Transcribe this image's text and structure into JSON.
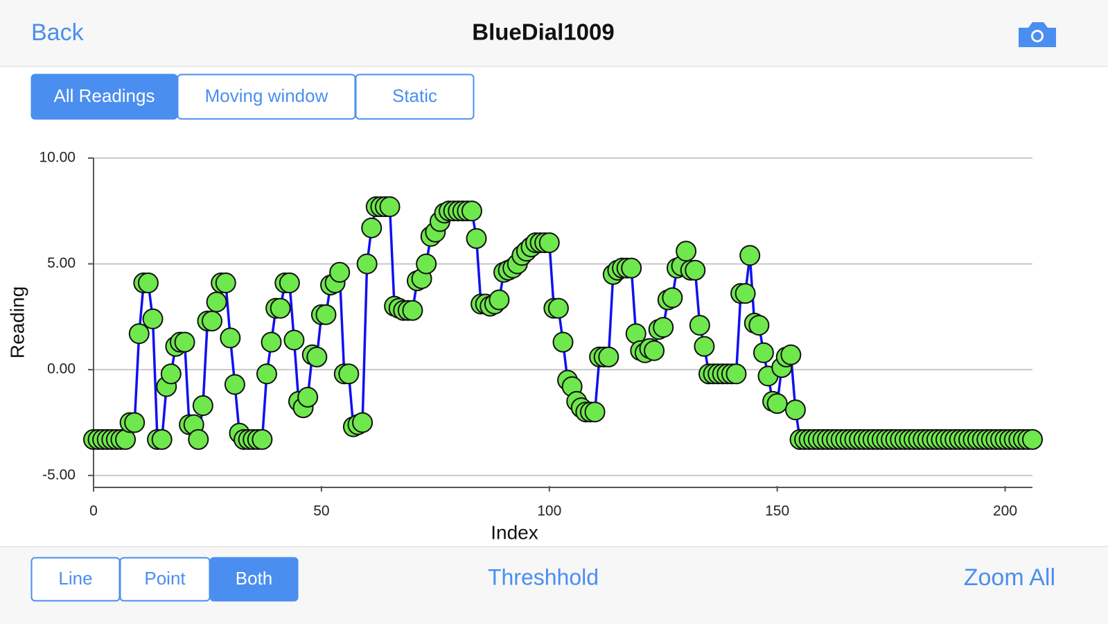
{
  "header": {
    "back": "Back",
    "title": "BlueDial1009"
  },
  "mode_tabs": {
    "items": [
      "All Readings",
      "Moving window",
      "Static"
    ],
    "selected": 0
  },
  "style_tabs": {
    "items": [
      "Line",
      "Point",
      "Both"
    ],
    "selected": 2
  },
  "threshold_button": "Threshhold",
  "zoom_button": "Zoom All",
  "chart_data": {
    "type": "line",
    "x_label": "Index",
    "y_label": "Reading",
    "xlim": [
      0,
      206
    ],
    "ylim": [
      -5.5,
      10
    ],
    "xticks": [
      0,
      50,
      100,
      150,
      200
    ],
    "yticks": [
      {
        "value": 10,
        "label": "10.00"
      },
      {
        "value": 5,
        "label": "5.00"
      },
      {
        "value": 0,
        "label": "0.00"
      },
      {
        "value": -5,
        "label": "-5.00"
      }
    ],
    "grid": true,
    "series": [
      {
        "color": "#1010f0",
        "marker_color": "#6ee84c",
        "x": [
          0,
          1,
          2,
          3,
          4,
          5,
          6,
          7,
          8,
          9,
          10,
          11,
          12,
          13,
          14,
          15,
          16,
          17,
          18,
          19,
          20,
          21,
          22,
          23,
          24,
          25,
          26,
          27,
          28,
          29,
          30,
          31,
          32,
          33,
          34,
          35,
          36,
          37,
          38,
          39,
          40,
          41,
          42,
          43,
          44,
          45,
          46,
          47,
          48,
          49,
          50,
          51,
          52,
          53,
          54,
          55,
          56,
          57,
          58,
          59,
          60,
          61,
          62,
          63,
          64,
          65,
          66,
          67,
          68,
          69,
          70,
          71,
          72,
          73,
          74,
          75,
          76,
          77,
          78,
          79,
          80,
          81,
          82,
          83,
          84,
          85,
          86,
          87,
          88,
          89,
          90,
          91,
          92,
          93,
          94,
          95,
          96,
          97,
          98,
          99,
          100,
          101,
          102,
          103,
          104,
          105,
          106,
          107,
          108,
          109,
          110,
          111,
          112,
          113,
          114,
          115,
          116,
          117,
          118,
          119,
          120,
          121,
          122,
          123,
          124,
          125,
          126,
          127,
          128,
          129,
          130,
          131,
          132,
          133,
          134,
          135,
          136,
          137,
          138,
          139,
          140,
          141,
          142,
          143,
          144,
          145,
          146,
          147,
          148,
          149,
          150,
          151,
          152,
          153,
          154,
          155,
          156,
          157,
          158,
          159,
          160,
          161,
          162,
          163,
          164,
          165,
          166,
          167,
          168,
          169,
          170,
          171,
          172,
          173,
          174,
          175,
          176,
          177,
          178,
          179,
          180,
          181,
          182,
          183,
          184,
          185,
          186,
          187,
          188,
          189,
          190,
          191,
          192,
          193,
          194,
          195,
          196,
          197,
          198,
          199,
          200,
          201,
          202,
          203,
          204,
          205,
          206
        ],
        "values": [
          -3.3,
          -3.3,
          -3.3,
          -3.3,
          -3.3,
          -3.3,
          -3.3,
          -3.3,
          -2.5,
          -2.5,
          1.7,
          4.1,
          4.1,
          2.4,
          -3.3,
          -3.3,
          -0.8,
          -0.2,
          1.1,
          1.3,
          1.3,
          -2.6,
          -2.6,
          -3.3,
          -1.7,
          2.3,
          2.3,
          3.2,
          4.1,
          4.1,
          1.5,
          -0.7,
          -3.0,
          -3.3,
          -3.3,
          -3.3,
          -3.3,
          -3.3,
          -0.2,
          1.3,
          2.9,
          2.9,
          4.1,
          4.1,
          1.4,
          -1.5,
          -1.8,
          -1.3,
          0.7,
          0.6,
          2.6,
          2.6,
          4.0,
          4.1,
          4.6,
          -0.2,
          -0.2,
          -2.7,
          -2.6,
          -2.5,
          5.0,
          6.7,
          7.7,
          7.7,
          7.7,
          7.7,
          3.0,
          2.9,
          2.8,
          2.8,
          2.8,
          4.2,
          4.3,
          5.0,
          6.3,
          6.5,
          7.0,
          7.4,
          7.5,
          7.5,
          7.5,
          7.5,
          7.5,
          7.5,
          6.2,
          3.1,
          3.1,
          3.0,
          3.1,
          3.3,
          4.6,
          4.7,
          4.8,
          5.0,
          5.4,
          5.6,
          5.8,
          6.0,
          6.0,
          6.0,
          6.0,
          2.9,
          2.9,
          1.3,
          -0.5,
          -0.8,
          -1.5,
          -1.8,
          -2.0,
          -2.0,
          -2.0,
          0.6,
          0.6,
          0.6,
          4.5,
          4.7,
          4.8,
          4.8,
          4.8,
          1.7,
          0.9,
          0.8,
          1.0,
          0.9,
          1.9,
          2.0,
          3.3,
          3.4,
          4.8,
          4.9,
          5.6,
          4.7,
          4.7,
          2.1,
          1.1,
          -0.2,
          -0.2,
          -0.2,
          -0.2,
          -0.2,
          -0.2,
          -0.2,
          3.6,
          3.6,
          5.4,
          2.2,
          2.1,
          0.8,
          -0.3,
          -1.5,
          -1.6,
          0.1,
          0.6,
          0.7,
          -1.9,
          -3.3,
          -3.3,
          -3.3,
          -3.3,
          -3.3,
          -3.3,
          -3.3,
          -3.3,
          -3.3,
          -3.3,
          -3.3,
          -3.3,
          -3.3,
          -3.3,
          -3.3,
          -3.3,
          -3.3,
          -3.3,
          -3.3,
          -3.3,
          -3.3,
          -3.3,
          -3.3,
          -3.3,
          -3.3,
          -3.3,
          -3.3,
          -3.3,
          -3.3,
          -3.3,
          -3.3,
          -3.3,
          -3.3,
          -3.3,
          -3.3,
          -3.3,
          -3.3,
          -3.3,
          -3.3,
          -3.3,
          -3.3,
          -3.3,
          -3.3,
          -3.3,
          -3.3,
          -3.3,
          -3.3,
          -3.3,
          -3.3,
          -3.3,
          -3.3,
          -3.3
        ]
      }
    ]
  }
}
